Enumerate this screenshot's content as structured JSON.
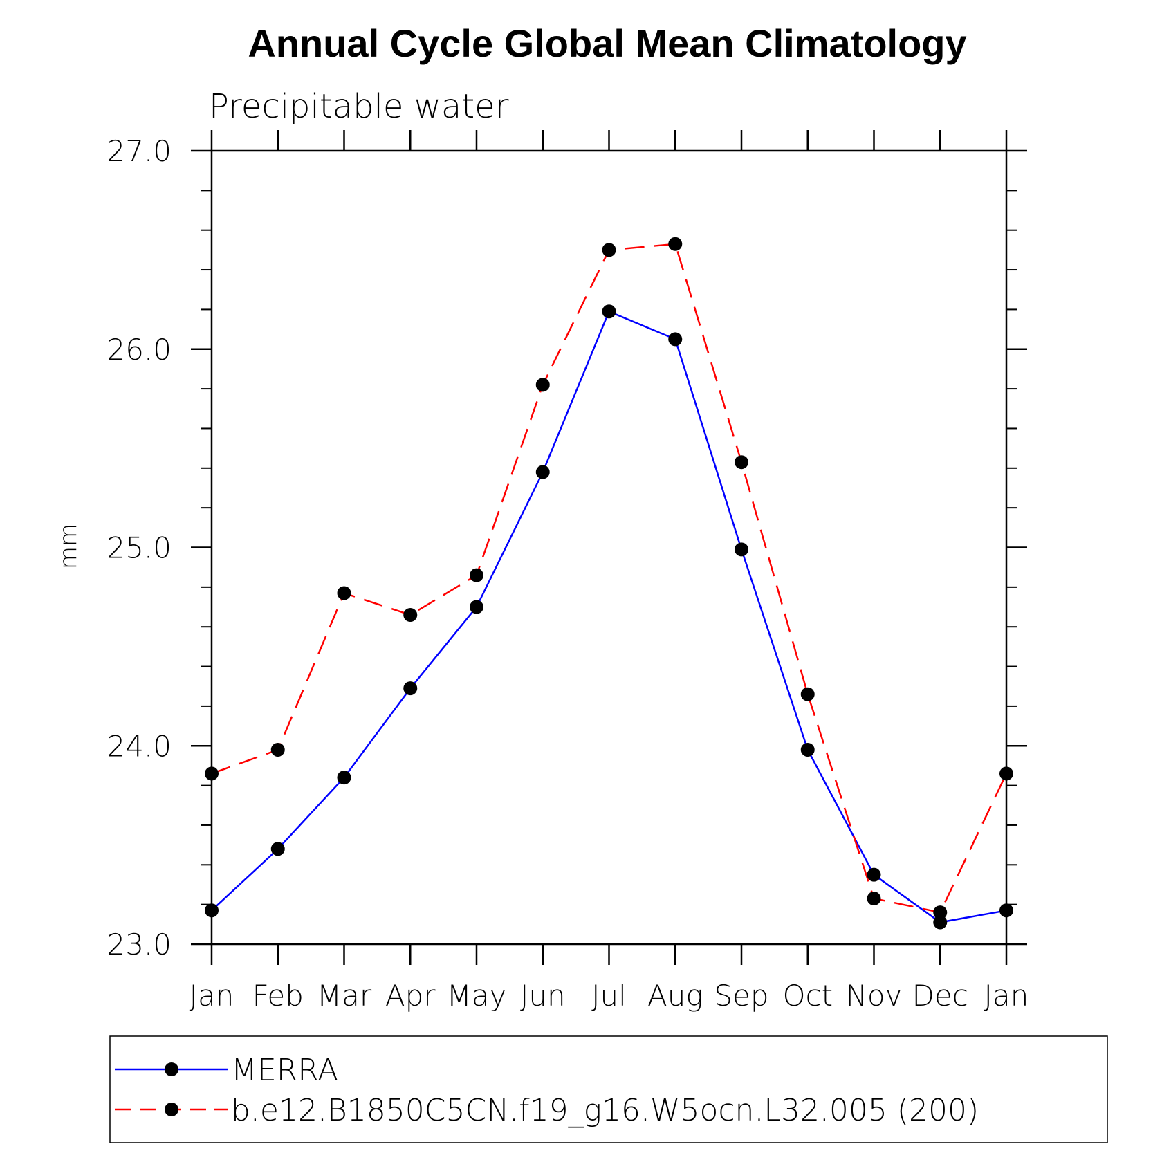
{
  "chart_data": {
    "type": "line",
    "title": "Annual Cycle Global Mean Climatology",
    "subtitle": "Precipitable water",
    "xlabel": "",
    "ylabel": "mm",
    "categories": [
      "Jan",
      "Feb",
      "Mar",
      "Apr",
      "May",
      "Jun",
      "Jul",
      "Aug",
      "Sep",
      "Oct",
      "Nov",
      "Dec",
      "Jan"
    ],
    "ylim": [
      23.0,
      27.0
    ],
    "y_ticks": [
      "23.0",
      "24.0",
      "25.0",
      "26.0",
      "27.0"
    ],
    "y_tick_values": [
      23.0,
      24.0,
      25.0,
      26.0,
      27.0
    ],
    "grid": false,
    "legend_position": "bottom",
    "series": [
      {
        "name": "MERRA",
        "color": "#0000ff",
        "line_style": "solid",
        "marker": "filled-circle",
        "values": [
          23.17,
          23.48,
          23.84,
          24.29,
          24.7,
          25.38,
          26.19,
          26.05,
          24.99,
          23.98,
          23.35,
          23.11,
          23.17
        ]
      },
      {
        "name": "b.e12.B1850C5CN.f19_g16.W5ocn.L32.005 (200)",
        "color": "#ff0000",
        "line_style": "dashed",
        "marker": "filled-circle",
        "values": [
          23.86,
          23.98,
          24.77,
          24.66,
          24.86,
          25.82,
          26.5,
          26.53,
          25.43,
          24.26,
          23.23,
          23.16,
          23.86
        ]
      }
    ]
  }
}
